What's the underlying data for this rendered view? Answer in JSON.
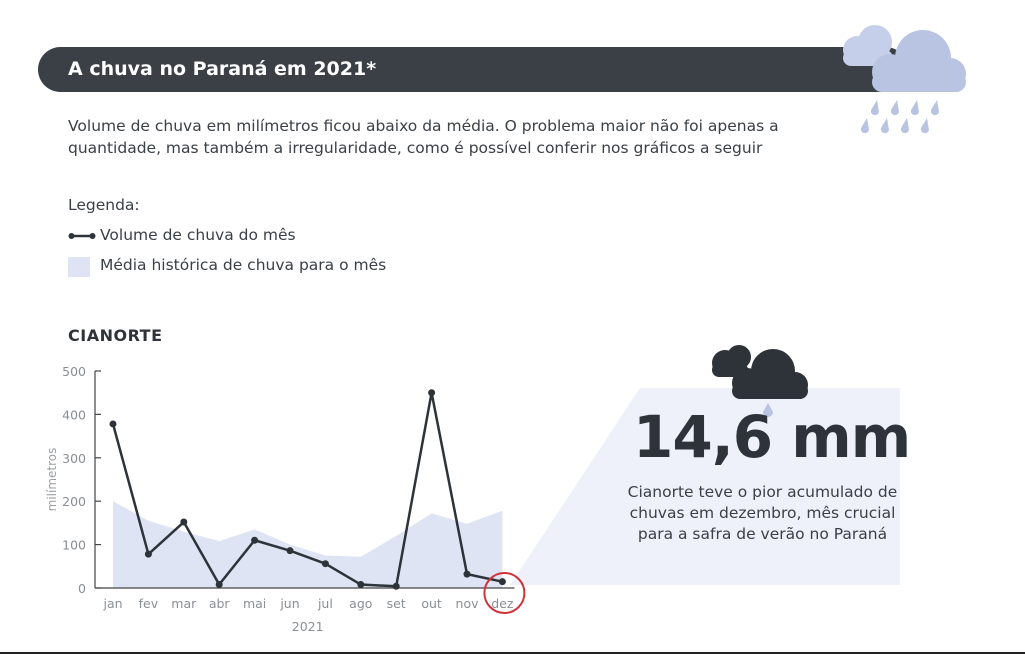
{
  "header": {
    "title": "A chuva no Paraná em 2021*",
    "subtitle": "Volume de chuva em milímetros ficou abaixo da média. O problema maior não foi apenas a quantidade, mas também a irregularidade, como é possível conferir nos gráficos a seguir"
  },
  "legend": {
    "title": "Legenda:",
    "line_label": "Volume de chuva do mês",
    "area_label": "Média histórica de chuva para o mês"
  },
  "highlight": {
    "value": "14,6 mm",
    "description": "Cianorte teve o pior acumulado de chuvas em dezembro, mês crucial para a safra de verão no Paraná"
  },
  "colors": {
    "dark": "#3a4046",
    "area": "#dfe4f4",
    "cloud_light": "#c6cfe9",
    "highlight_ring": "#d0323a"
  },
  "chart_data": {
    "type": "line",
    "title": "CIANORTE",
    "categories": [
      "jan",
      "fev",
      "mar",
      "abr",
      "mai",
      "jun",
      "jul",
      "ago",
      "set",
      "out",
      "nov",
      "dez"
    ],
    "xlabel": "2021",
    "ylabel": "milímetros",
    "ylim": [
      0,
      500
    ],
    "yticks": [
      0,
      100,
      200,
      300,
      400,
      500
    ],
    "grid": false,
    "series": [
      {
        "name": "Volume de chuva do mês",
        "type": "line",
        "values": [
          378,
          78,
          152,
          8,
          110,
          86,
          56,
          8,
          4,
          450,
          32,
          14.6
        ]
      },
      {
        "name": "Média histórica de chuva para o mês",
        "type": "area",
        "values": [
          200,
          155,
          130,
          108,
          135,
          100,
          75,
          72,
          120,
          172,
          148,
          178
        ]
      }
    ],
    "highlight_category": "dez"
  }
}
